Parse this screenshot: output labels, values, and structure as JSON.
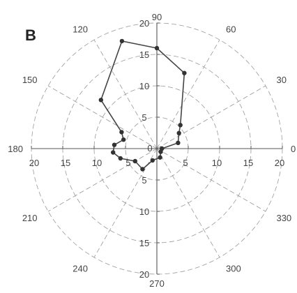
{
  "panel_label": "B",
  "chart_data": {
    "type": "polar-line",
    "angle_unit": "degrees",
    "angle_ticks": [
      "0",
      "30",
      "60",
      "90",
      "120",
      "150",
      "180",
      "210",
      "240",
      "270",
      "300",
      "330"
    ],
    "radial_range": [
      0,
      20
    ],
    "radial_ticks": [
      "5",
      "10",
      "15",
      "20"
    ],
    "grid": "dashed circles and radial spokes every 30 degrees",
    "series": [
      {
        "points": [
          {
            "theta": 0,
            "r": 0.8
          },
          {
            "theta": 15,
            "r": 3.5
          },
          {
            "theta": 35,
            "r": 4.3
          },
          {
            "theta": 45,
            "r": 5.3
          },
          {
            "theta": 70,
            "r": 12.8
          },
          {
            "theta": 90,
            "r": 16.0
          },
          {
            "theta": 108,
            "r": 18.0
          },
          {
            "theta": 139,
            "r": 11.8
          },
          {
            "theta": 155,
            "r": 6.2
          },
          {
            "theta": 165,
            "r": 5.5
          },
          {
            "theta": 175,
            "r": 6.8
          },
          {
            "theta": 185,
            "r": 7.0
          },
          {
            "theta": 195,
            "r": 6.0
          },
          {
            "theta": 210,
            "r": 4.0
          },
          {
            "theta": 235,
            "r": 4.0
          },
          {
            "theta": 250,
            "r": 2.0
          },
          {
            "theta": 290,
            "r": 1.5
          },
          {
            "theta": 320,
            "r": 0.8
          },
          {
            "theta": 0,
            "r": 0.8
          }
        ]
      }
    ]
  }
}
